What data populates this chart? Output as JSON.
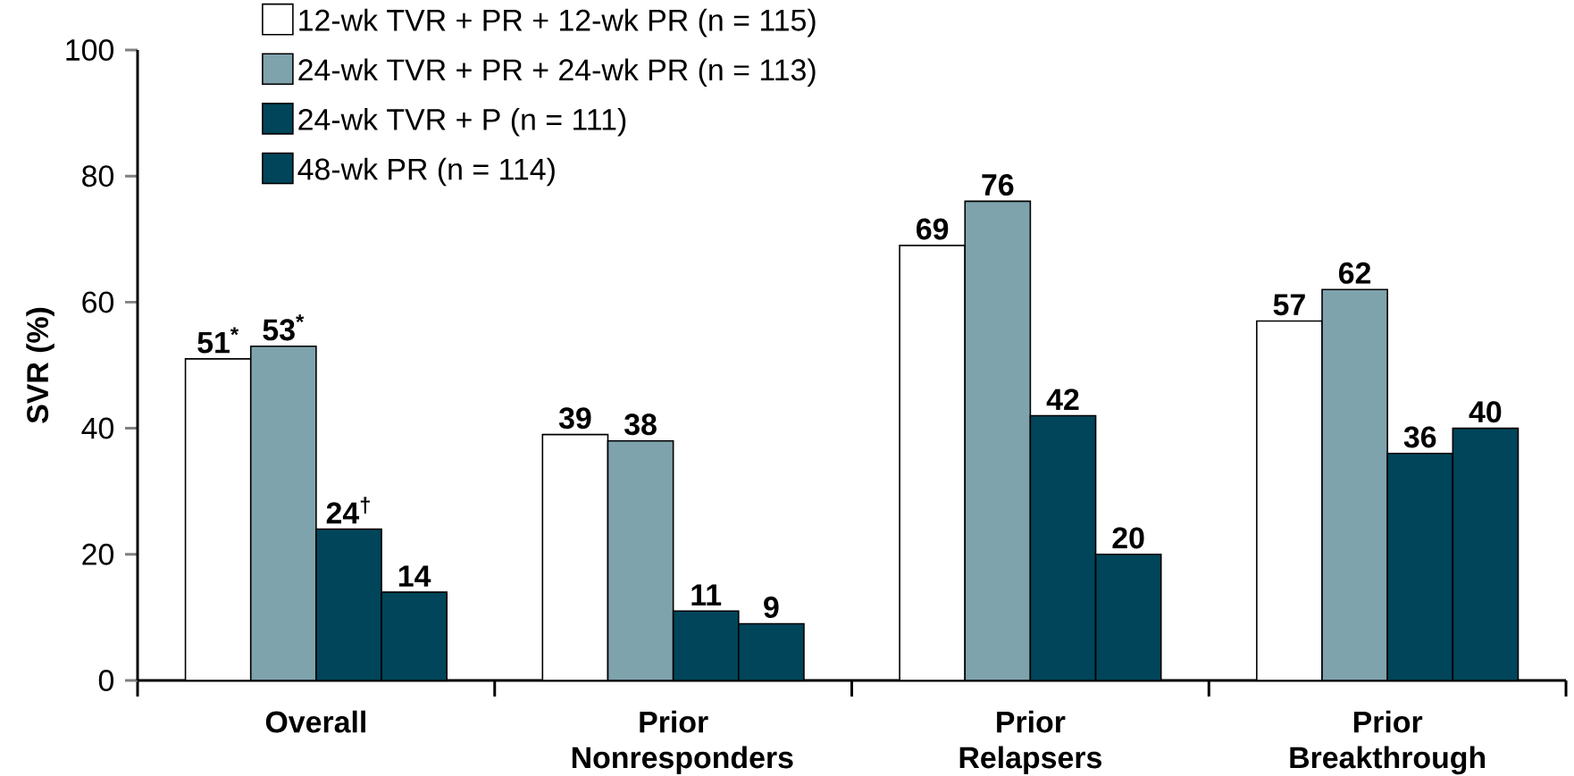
{
  "chart_data": {
    "type": "bar",
    "ylabel": "SVR (%)",
    "categories": [
      "Overall",
      "Prior Nonresponders",
      "Prior Relapsers",
      "Prior Breakthrough"
    ],
    "series": [
      {
        "name": "12-wk TVR + PR + 12-wk PR (n = 115)",
        "color": "#ffffff",
        "values": [
          51,
          39,
          69,
          57
        ],
        "value_labels": [
          "51$^{*}$",
          "39",
          "69",
          "57"
        ]
      },
      {
        "name": "24-wk TVR + PR + 24-wk PR (n = 113)",
        "color": "#7fa3ad",
        "values": [
          53,
          38,
          76,
          62
        ],
        "value_labels": [
          "53$^{*}$",
          "38",
          "76",
          "62"
        ]
      },
      {
        "name": "24-wk TVR + P (n = 111)",
        "color": "#00455a",
        "values": [
          24,
          11,
          42,
          36
        ],
        "value_labels": [
          "24$^{†}$",
          "11",
          "42",
          "36"
        ]
      },
      {
        "name": "48-wk PR (n = 114)",
        "color": "#00455a",
        "values": [
          14,
          9,
          20,
          40
        ],
        "value_labels": [
          "14",
          "9",
          "20",
          "40"
        ]
      }
    ],
    "ylim": [
      0,
      100
    ],
    "yticks": [
      0,
      20,
      40,
      60,
      80,
      100
    ],
    "legend": "top left",
    "grid": false
  }
}
